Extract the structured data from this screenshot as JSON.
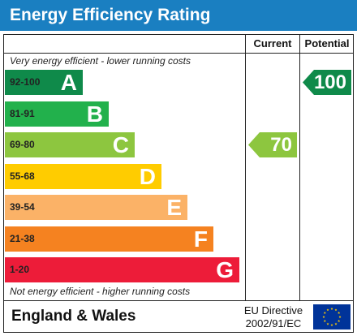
{
  "title": "Energy Efficiency Rating",
  "columns": {
    "current": "Current",
    "potential": "Potential"
  },
  "notes": {
    "top": "Very energy efficient - lower running costs",
    "bottom": "Not energy efficient - higher running costs"
  },
  "footer": {
    "region": "England & Wales",
    "directive_line1": "EU Directive",
    "directive_line2": "2002/91/EC",
    "flag_icon": "eu-flag-icon"
  },
  "chart_data": {
    "type": "bar",
    "title": "Energy Efficiency Rating",
    "bands": [
      {
        "letter": "A",
        "range": "92-100",
        "min": 92,
        "max": 100,
        "color": "#0f8a4a"
      },
      {
        "letter": "B",
        "range": "81-91",
        "min": 81,
        "max": 91,
        "color": "#22b14c"
      },
      {
        "letter": "C",
        "range": "69-80",
        "min": 69,
        "max": 80,
        "color": "#8dc63f"
      },
      {
        "letter": "D",
        "range": "55-68",
        "min": 55,
        "max": 68,
        "color": "#ffcc00"
      },
      {
        "letter": "E",
        "range": "39-54",
        "min": 39,
        "max": 54,
        "color": "#fbb267"
      },
      {
        "letter": "F",
        "range": "21-38",
        "min": 21,
        "max": 38,
        "color": "#f58220"
      },
      {
        "letter": "G",
        "range": "1-20",
        "min": 1,
        "max": 20,
        "color": "#ed1c39"
      }
    ],
    "current": {
      "value": 70,
      "label": "70",
      "band": "C",
      "color": "#8dc63f"
    },
    "potential": {
      "value": 100,
      "label": "100",
      "band": "A",
      "color": "#0f8a4a"
    }
  }
}
